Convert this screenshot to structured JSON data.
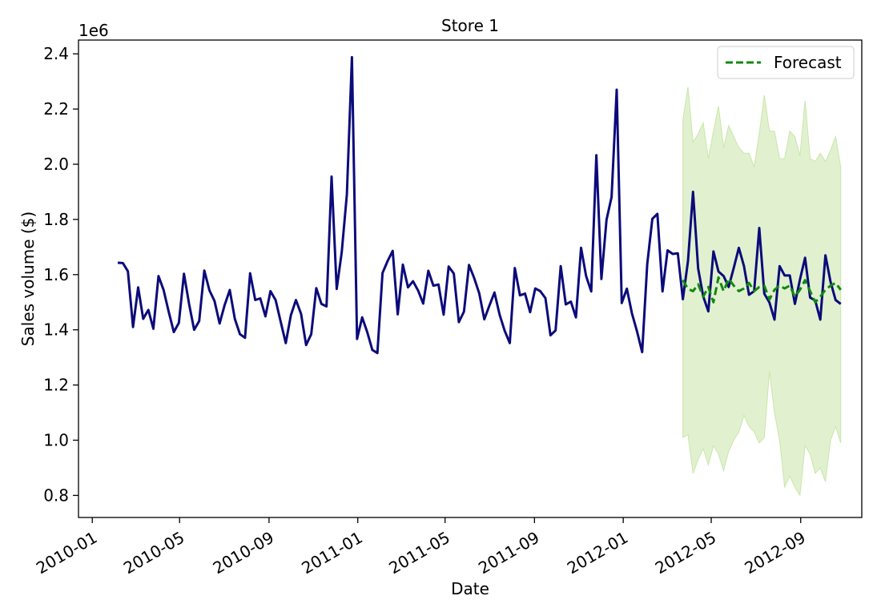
{
  "chart_data": {
    "type": "line",
    "title": "Store 1",
    "xlabel": "Date",
    "ylabel": "Sales volume ($)",
    "y_scale_label": "1e6",
    "x_scale": "date",
    "xlim": [
      "2009-12-13",
      "2012-11-24"
    ],
    "ylim": [
      0.72,
      2.45
    ],
    "y_unit_multiplier": 1000000,
    "x_ticks": [
      {
        "date": "2010-01-01",
        "label": "2010-01"
      },
      {
        "date": "2010-05-01",
        "label": "2010-05"
      },
      {
        "date": "2010-09-01",
        "label": "2010-09"
      },
      {
        "date": "2011-01-01",
        "label": "2011-01"
      },
      {
        "date": "2011-05-01",
        "label": "2011-05"
      },
      {
        "date": "2011-09-01",
        "label": "2011-09"
      },
      {
        "date": "2012-01-01",
        "label": "2012-01"
      },
      {
        "date": "2012-05-01",
        "label": "2012-05"
      },
      {
        "date": "2012-09-01",
        "label": "2012-09"
      }
    ],
    "y_ticks": [
      {
        "value": 0.8,
        "label": "0.8"
      },
      {
        "value": 1.0,
        "label": "1.0"
      },
      {
        "value": 1.2,
        "label": "1.2"
      },
      {
        "value": 1.4,
        "label": "1.4"
      },
      {
        "value": 1.6,
        "label": "1.6"
      },
      {
        "value": 1.8,
        "label": "1.8"
      },
      {
        "value": 2.0,
        "label": "2.0"
      },
      {
        "value": 2.2,
        "label": "2.2"
      },
      {
        "value": 2.4,
        "label": "2.4"
      }
    ],
    "grid": false,
    "legend": {
      "placement": "top-right",
      "entries": [
        "Forecast"
      ]
    },
    "colors": {
      "actual": "#0b0b7a",
      "forecast": "#118811",
      "band": "#c8e6a8"
    },
    "series": [
      {
        "role": "actual",
        "style": "solid",
        "x": [
          "2010-02-05",
          "2010-02-12",
          "2010-02-19",
          "2010-02-26",
          "2010-03-05",
          "2010-03-12",
          "2010-03-19",
          "2010-03-26",
          "2010-04-02",
          "2010-04-09",
          "2010-04-16",
          "2010-04-23",
          "2010-04-30",
          "2010-05-07",
          "2010-05-14",
          "2010-05-21",
          "2010-05-28",
          "2010-06-04",
          "2010-06-11",
          "2010-06-18",
          "2010-06-25",
          "2010-07-02",
          "2010-07-09",
          "2010-07-16",
          "2010-07-23",
          "2010-07-30",
          "2010-08-06",
          "2010-08-13",
          "2010-08-20",
          "2010-08-27",
          "2010-09-03",
          "2010-09-10",
          "2010-09-17",
          "2010-09-24",
          "2010-10-01",
          "2010-10-08",
          "2010-10-15",
          "2010-10-22",
          "2010-10-29",
          "2010-11-05",
          "2010-11-12",
          "2010-11-19",
          "2010-11-26",
          "2010-12-03",
          "2010-12-10",
          "2010-12-17",
          "2010-12-24",
          "2010-12-31",
          "2011-01-07",
          "2011-01-14",
          "2011-01-21",
          "2011-01-28",
          "2011-02-04",
          "2011-02-11",
          "2011-02-18",
          "2011-02-25",
          "2011-03-04",
          "2011-03-11",
          "2011-03-18",
          "2011-03-25",
          "2011-04-01",
          "2011-04-08",
          "2011-04-15",
          "2011-04-22",
          "2011-04-29",
          "2011-05-06",
          "2011-05-13",
          "2011-05-20",
          "2011-05-27",
          "2011-06-03",
          "2011-06-10",
          "2011-06-17",
          "2011-06-24",
          "2011-07-01",
          "2011-07-08",
          "2011-07-15",
          "2011-07-22",
          "2011-07-29",
          "2011-08-05",
          "2011-08-12",
          "2011-08-19",
          "2011-08-26",
          "2011-09-02",
          "2011-09-09",
          "2011-09-16",
          "2011-09-23",
          "2011-09-30",
          "2011-10-07",
          "2011-10-14",
          "2011-10-21",
          "2011-10-28",
          "2011-11-04",
          "2011-11-11",
          "2011-11-18",
          "2011-11-25",
          "2011-12-02",
          "2011-12-09",
          "2011-12-16",
          "2011-12-23",
          "2011-12-30",
          "2012-01-06",
          "2012-01-13",
          "2012-01-20",
          "2012-01-27",
          "2012-02-03",
          "2012-02-10",
          "2012-02-17",
          "2012-02-24",
          "2012-03-02",
          "2012-03-09",
          "2012-03-16",
          "2012-03-23",
          "2012-03-30",
          "2012-04-06",
          "2012-04-13",
          "2012-04-20",
          "2012-04-27",
          "2012-05-04",
          "2012-05-11",
          "2012-05-18",
          "2012-05-25",
          "2012-06-01",
          "2012-06-08",
          "2012-06-15",
          "2012-06-22",
          "2012-06-29",
          "2012-07-06",
          "2012-07-13",
          "2012-07-20",
          "2012-07-27",
          "2012-08-03",
          "2012-08-10",
          "2012-08-17",
          "2012-08-24",
          "2012-08-31",
          "2012-09-07",
          "2012-09-14",
          "2012-09-21",
          "2012-09-28",
          "2012-10-05",
          "2012-10-12",
          "2012-10-19",
          "2012-10-26"
        ],
        "values": [
          1.643,
          1.642,
          1.612,
          1.41,
          1.554,
          1.44,
          1.472,
          1.404,
          1.595,
          1.545,
          1.466,
          1.392,
          1.425,
          1.603,
          1.495,
          1.4,
          1.432,
          1.615,
          1.543,
          1.505,
          1.423,
          1.49,
          1.544,
          1.44,
          1.384,
          1.371,
          1.605,
          1.508,
          1.514,
          1.449,
          1.54,
          1.508,
          1.43,
          1.352,
          1.453,
          1.508,
          1.458,
          1.345,
          1.384,
          1.551,
          1.494,
          1.485,
          1.955,
          1.548,
          1.682,
          1.891,
          2.388,
          1.367,
          1.445,
          1.392,
          1.327,
          1.316,
          1.606,
          1.649,
          1.686,
          1.456,
          1.636,
          1.554,
          1.576,
          1.542,
          1.495,
          1.614,
          1.56,
          1.564,
          1.455,
          1.629,
          1.604,
          1.428,
          1.466,
          1.635,
          1.588,
          1.532,
          1.438,
          1.488,
          1.535,
          1.455,
          1.397,
          1.352,
          1.624,
          1.525,
          1.531,
          1.464,
          1.55,
          1.54,
          1.515,
          1.38,
          1.398,
          1.631,
          1.492,
          1.502,
          1.445,
          1.697,
          1.595,
          1.539,
          2.033,
          1.584,
          1.799,
          1.881,
          2.27,
          1.497,
          1.549,
          1.46,
          1.394,
          1.319,
          1.637,
          1.802,
          1.82,
          1.539,
          1.688,
          1.675,
          1.677,
          1.511,
          1.649,
          1.9,
          1.622,
          1.521,
          1.467,
          1.684,
          1.611,
          1.595,
          1.555,
          1.625,
          1.697,
          1.631,
          1.527,
          1.54,
          1.769,
          1.531,
          1.499,
          1.437,
          1.631,
          1.597,
          1.597,
          1.494,
          1.582,
          1.661,
          1.517,
          1.506,
          1.437,
          1.67,
          1.574,
          1.508,
          1.494
        ]
      },
      {
        "role": "forecast",
        "style": "dashed",
        "name": "Forecast",
        "x": [
          "2012-03-23",
          "2012-03-30",
          "2012-04-06",
          "2012-04-13",
          "2012-04-20",
          "2012-04-27",
          "2012-05-04",
          "2012-05-11",
          "2012-05-18",
          "2012-05-25",
          "2012-06-01",
          "2012-06-08",
          "2012-06-15",
          "2012-06-22",
          "2012-06-29",
          "2012-07-06",
          "2012-07-13",
          "2012-07-20",
          "2012-07-27",
          "2012-08-03",
          "2012-08-10",
          "2012-08-17",
          "2012-08-24",
          "2012-08-31",
          "2012-09-07",
          "2012-09-14",
          "2012-09-21",
          "2012-09-28",
          "2012-10-05",
          "2012-10-12",
          "2012-10-19",
          "2012-10-26"
        ],
        "values": [
          1.58,
          1.548,
          1.54,
          1.565,
          1.52,
          1.555,
          1.5,
          1.59,
          1.54,
          1.585,
          1.56,
          1.54,
          1.55,
          1.57,
          1.54,
          1.555,
          1.56,
          1.51,
          1.545,
          1.56,
          1.55,
          1.56,
          1.52,
          1.545,
          1.58,
          1.54,
          1.5,
          1.52,
          1.545,
          1.56,
          1.57,
          1.545
        ]
      }
    ],
    "band": {
      "role": "forecast-interval",
      "x": [
        "2012-03-23",
        "2012-03-30",
        "2012-04-06",
        "2012-04-13",
        "2012-04-20",
        "2012-04-27",
        "2012-05-04",
        "2012-05-11",
        "2012-05-18",
        "2012-05-25",
        "2012-06-01",
        "2012-06-08",
        "2012-06-15",
        "2012-06-22",
        "2012-06-29",
        "2012-07-06",
        "2012-07-13",
        "2012-07-20",
        "2012-07-27",
        "2012-08-03",
        "2012-08-10",
        "2012-08-17",
        "2012-08-24",
        "2012-08-31",
        "2012-09-07",
        "2012-09-14",
        "2012-09-21",
        "2012-09-28",
        "2012-10-05",
        "2012-10-12",
        "2012-10-19",
        "2012-10-26"
      ],
      "upper": [
        2.16,
        2.28,
        2.08,
        2.11,
        2.15,
        2.02,
        2.12,
        2.21,
        2.06,
        2.14,
        2.1,
        2.06,
        2.04,
        2.04,
        1.99,
        2.11,
        2.25,
        2.12,
        2.12,
        2.02,
        2.02,
        2.12,
        2.1,
        2.03,
        2.23,
        2.02,
        2.01,
        2.04,
        2.01,
        2.05,
        2.1,
        1.99
      ],
      "lower": [
        1.01,
        1.02,
        0.88,
        0.93,
        0.97,
        0.91,
        0.98,
        0.95,
        0.89,
        0.96,
        1.0,
        1.03,
        1.09,
        1.05,
        1.03,
        0.99,
        1.01,
        1.25,
        1.1,
        1.0,
        0.83,
        0.87,
        0.83,
        0.8,
        0.98,
        0.95,
        0.88,
        0.9,
        0.85,
        1.0,
        1.05,
        0.99
      ]
    }
  }
}
